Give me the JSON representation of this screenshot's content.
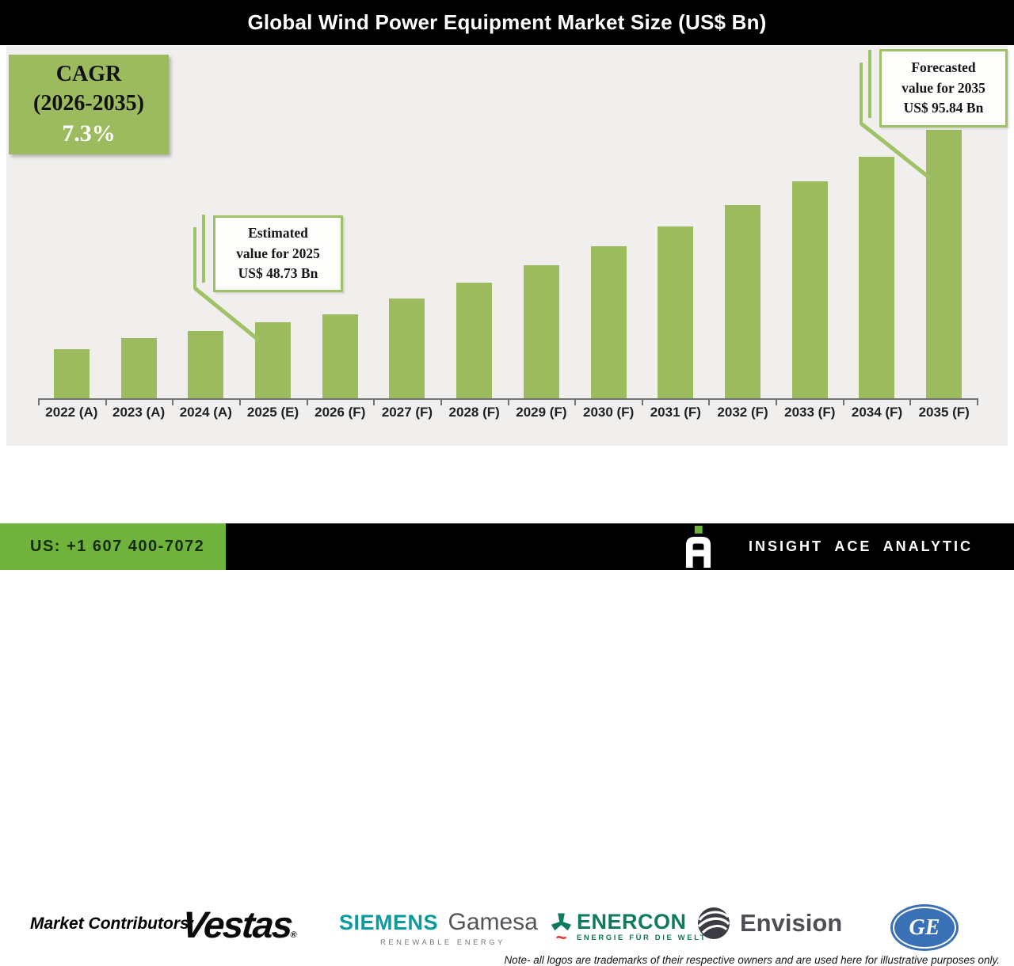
{
  "header": {
    "title": "Global Wind Power Equipment Market Size (US$ Bn)"
  },
  "cagr_box": {
    "line1": "CAGR",
    "line2": "(2026-2035)",
    "value": "7.3%"
  },
  "callouts": {
    "estimated": {
      "line1": "Estimated",
      "line2": "value for 2025",
      "line3": "US$ 48.73 Bn"
    },
    "forecasted": {
      "line1": "Forecasted",
      "line2": "value for 2035",
      "line3": "US$ 95.84 Bn"
    }
  },
  "chart_data": {
    "type": "bar",
    "title": "Global Wind Power Equipment Market Size (US$ Bn)",
    "categories": [
      "2022 (A)",
      "2023 (A)",
      "2024 (A)",
      "2025 (E)",
      "2026 (F)",
      "2027 (F)",
      "2028 (F)",
      "2029 (F)",
      "2030 (F)",
      "2031 (F)",
      "2032 (F)",
      "2033 (F)",
      "2034 (F)",
      "2035 (F)"
    ],
    "values": [
      42.2,
      44.9,
      46.7,
      48.73,
      50.84,
      54.55,
      58.53,
      62.8,
      67.39,
      72.31,
      77.58,
      83.25,
      89.33,
      95.84
    ],
    "xlabel": "",
    "ylabel": "",
    "ylim": [
      30,
      100
    ],
    "grid": false,
    "legend": null,
    "bar_color": "#9cbb5f",
    "annotations": [
      {
        "target": "2025 (E)",
        "text": "Estimated value for 2025 US$ 48.73 Bn"
      },
      {
        "target": "2035 (F)",
        "text": "Forecasted value for 2035 US$ 95.84 Bn"
      },
      {
        "text": "CAGR (2026-2035) 7.3%"
      }
    ]
  },
  "contributors": {
    "label": "Market Contributors:",
    "vestas": {
      "wordmark": "Vestas",
      "reg": "®"
    },
    "siemens_gamesa": {
      "part1": "SIEMENS",
      "part2": "Gamesa",
      "subtitle": "RENEWABLE ENERGY"
    },
    "enercon": {
      "icon": "enercon-rotor-icon",
      "squiggle": "~",
      "wordmark": "ENERCON",
      "subtitle": "ENERGIE FÜR DIE WELT"
    },
    "envision": {
      "icon": "envision-swirl-icon",
      "wordmark": "Envision"
    },
    "ge": {
      "icon": "ge-roundel-icon",
      "monogram": "GE"
    },
    "note": "Note- all logos are trademarks of their respective owners and are used here for illustrative purposes only."
  },
  "footer": {
    "phone": "US: +1 607 400-7072",
    "brand": "INSIGHT ACE ANALYTIC",
    "logo": "insight-ace-a-icon"
  },
  "colors": {
    "bar_green": "#9cbb5f",
    "callout_border_green": "#a0c266",
    "footer_green": "#6fb33c",
    "header_bg": "#000000",
    "chart_bg": "#f0efed",
    "siemens_teal": "#0b9a9e",
    "gamesa_gray": "#545559",
    "enercon_green": "#0e7a5e",
    "enercon_red": "#e2342a",
    "envision_dark": "#3b3b43",
    "ge_blue": "#3a70b6"
  }
}
